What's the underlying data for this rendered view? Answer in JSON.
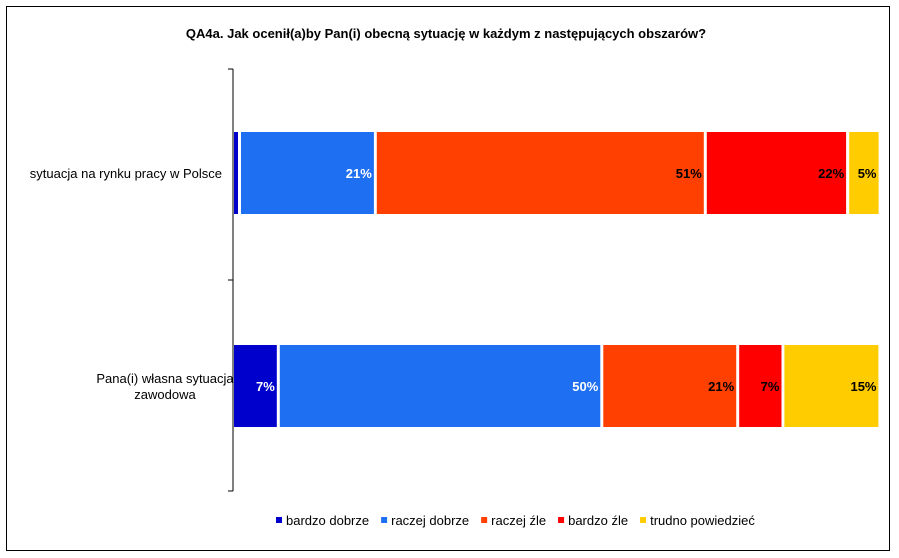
{
  "chart_data": {
    "type": "bar",
    "orientation": "horizontal",
    "stacked": "percent",
    "title": "QA4a. Jak ocenił(a)by Pan(i) obecną sytuację w każdym z następujących obszarów?",
    "categories": [
      [
        "sytuacja na rynku pracy w Polsce"
      ],
      [
        "Pana(i) własna sytuacja",
        "zawodowa"
      ]
    ],
    "series": [
      {
        "name": "bardzo dobrze",
        "color": "#0000cc",
        "label_color": "#ffffff",
        "values": [
          1,
          7
        ],
        "labels": [
          "1%",
          "7%"
        ]
      },
      {
        "name": "raczej dobrze",
        "color": "#1f6ff2",
        "label_color": "#ffffff",
        "values": [
          21,
          50
        ],
        "labels": [
          "21%",
          "50%"
        ]
      },
      {
        "name": "raczej źle",
        "color": "#ff4000",
        "label_color": "#000000",
        "values": [
          51,
          21
        ],
        "labels": [
          "51%",
          "21%"
        ]
      },
      {
        "name": "bardzo źle",
        "color": "#ff0000",
        "label_color": "#000000",
        "values": [
          22,
          7
        ],
        "labels": [
          "22%",
          "7%"
        ]
      },
      {
        "name": "trudno powiedzieć",
        "color": "#ffcc00",
        "label_color": "#000000",
        "values": [
          5,
          15
        ],
        "labels": [
          "5%",
          "15%"
        ]
      }
    ],
    "legend_position": "bottom",
    "grid": false
  }
}
